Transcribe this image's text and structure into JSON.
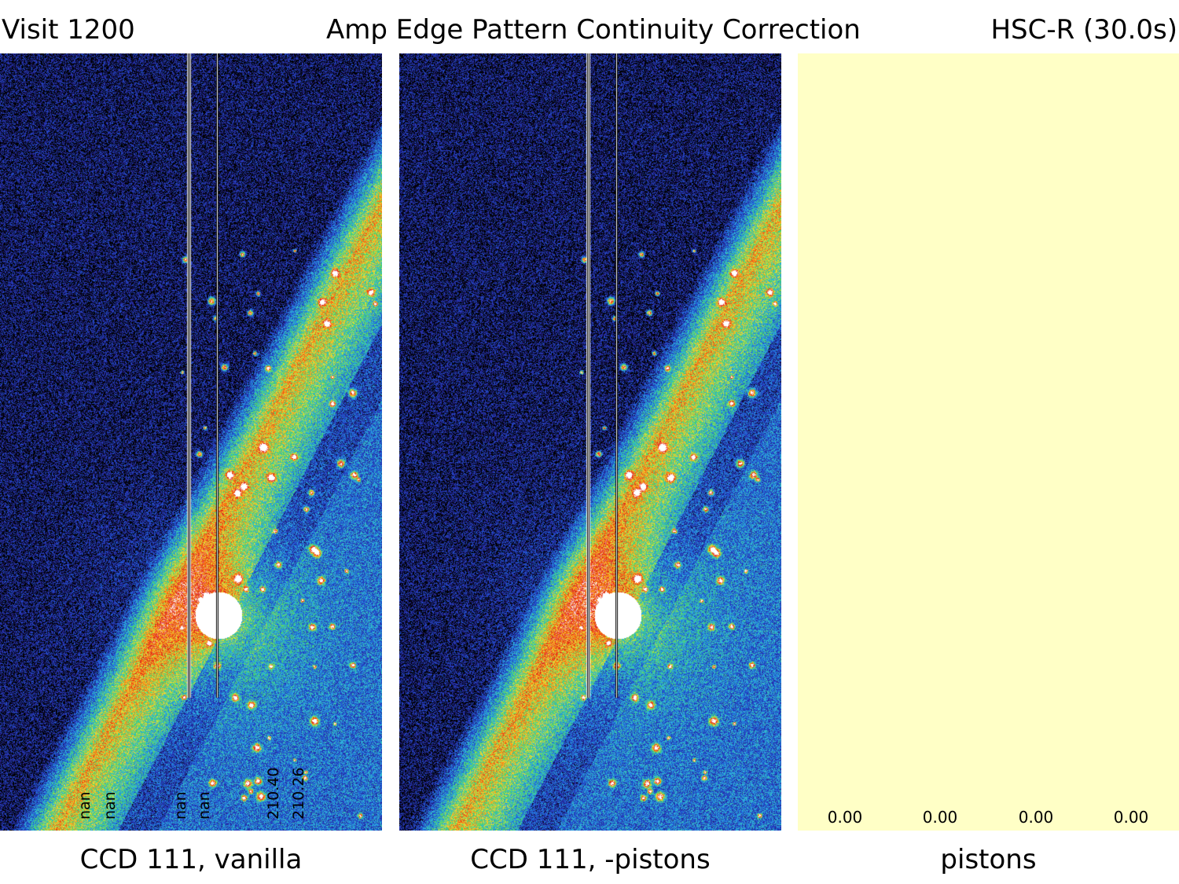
{
  "header": {
    "visit": "Visit 1200",
    "title": "Amp Edge Pattern Continuity Correction",
    "filter": "HSC-R (30.0s)"
  },
  "panels": [
    {
      "caption": "CCD 111, vanilla",
      "amp_labels": [
        "nan",
        "nan",
        "nan",
        "nan",
        "210.40",
        "210.26"
      ]
    },
    {
      "caption": "CCD 111, -pistons"
    },
    {
      "caption": "pistons",
      "values": [
        "0.00",
        "0.00",
        "0.00",
        "0.00"
      ],
      "fill_color": "#ffffc6"
    }
  ],
  "colormap": [
    "#000000",
    "#2a2aa8",
    "#1e5cd6",
    "#2fb6e0",
    "#45d26a",
    "#e8e23a",
    "#ff7a10",
    "#d81b1b",
    "#ffffff"
  ]
}
